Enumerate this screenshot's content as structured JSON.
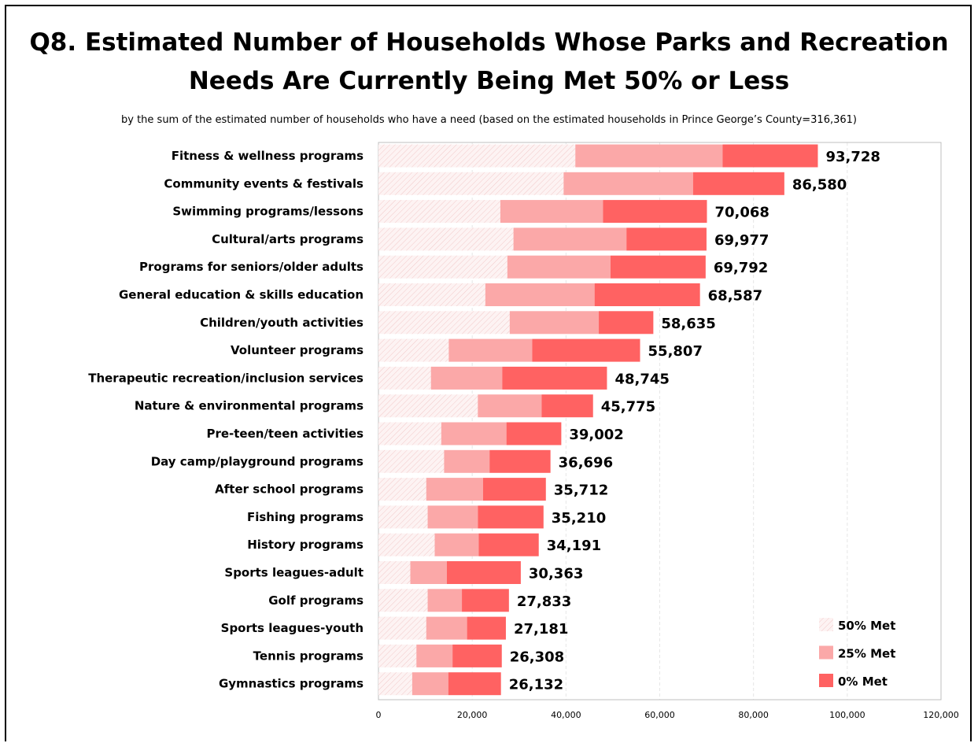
{
  "chart_data": {
    "type": "bar",
    "orientation": "horizontal",
    "stacked": true,
    "title": "Q8. Estimated Number of Households Whose Parks and Recreation Needs Are Currently Being Met 50% or Less",
    "subtitle": "by the sum of the estimated number of households who have a need (based on the estimated households in Prince George’s County=316,361)",
    "xlim": [
      0,
      120000
    ],
    "x_ticks": [
      0,
      20000,
      40000,
      60000,
      80000,
      100000,
      120000
    ],
    "x_tick_labels": [
      "0",
      "20,000",
      "40,000",
      "60,000",
      "80,000",
      "100,000",
      "120,000"
    ],
    "gridlines": "vertical",
    "legend_position": "bottom-right",
    "categories": [
      "Fitness & wellness programs",
      "Community events & festivals",
      "Swimming programs/lessons",
      "Cultural/arts programs",
      "Programs for seniors/older adults",
      "General education & skills education",
      "Children/youth activities",
      "Volunteer programs",
      "Therapeutic recreation/inclusion services",
      "Nature & environmental programs",
      "Pre-teen/teen activities",
      "Day camp/playground programs",
      "After school programs",
      "Fishing programs",
      "History programs",
      "Sports leagues-adult",
      "Golf programs",
      "Sports leagues-youth",
      "Tennis programs",
      "Gymnastics programs"
    ],
    "series": [
      {
        "name": "50% Met",
        "color": "#fbe4e4",
        "pattern": "hatch",
        "values": [
          42000,
          39500,
          26000,
          28800,
          27500,
          22800,
          28000,
          15000,
          11200,
          21200,
          13400,
          14000,
          10200,
          10500,
          12000,
          6800,
          10500,
          10200,
          8100,
          7200
        ]
      },
      {
        "name": "25% Met",
        "color": "#fba8a8",
        "values": [
          31400,
          27600,
          21900,
          24100,
          22000,
          23300,
          19000,
          17800,
          15200,
          13600,
          13900,
          9700,
          12100,
          10700,
          9400,
          7800,
          7300,
          8700,
          7700,
          7700
        ]
      },
      {
        "name": "0% Met",
        "color": "#ff6262",
        "values": [
          20328,
          19480,
          22168,
          17077,
          20292,
          22487,
          11635,
          23007,
          22345,
          10975,
          11702,
          12996,
          13412,
          14010,
          12791,
          15763,
          10033,
          8281,
          10508,
          11232
        ]
      }
    ],
    "totals": [
      93728,
      86580,
      70068,
      69977,
      69792,
      68587,
      58635,
      55807,
      48745,
      45775,
      39002,
      36696,
      35712,
      35210,
      34191,
      30363,
      27833,
      27181,
      26308,
      26132
    ],
    "total_labels": [
      "93,728",
      "86,580",
      "70,068",
      "69,977",
      "69,792",
      "68,587",
      "58,635",
      "55,807",
      "48,745",
      "45,775",
      "39,002",
      "36,696",
      "35,712",
      "35,210",
      "34,191",
      "30,363",
      "27,833",
      "27,181",
      "26,308",
      "26,132"
    ]
  }
}
